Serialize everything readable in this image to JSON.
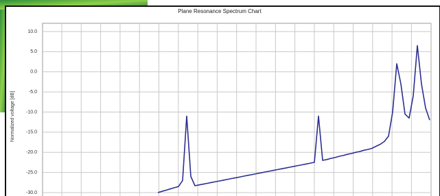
{
  "chart_data": {
    "type": "line",
    "title": "Plane Resonance Spectrum Chart",
    "y_label": "Normalized voltage [dB]",
    "series": [
      {
        "color": "#2b2f8f",
        "values": [
          null,
          null,
          null,
          null,
          null,
          null,
          null,
          null,
          null,
          null,
          null,
          null,
          null,
          null,
          null,
          null,
          null,
          null,
          null,
          null,
          null,
          null,
          null,
          null,
          null,
          null,
          null,
          null,
          -30.0,
          -29.7,
          -29.4,
          -29.1,
          -28.8,
          -28.5,
          -27,
          -11,
          -26,
          -28.3,
          -28.1,
          -27.9,
          -27.7,
          -27.5,
          -27.3,
          -27.1,
          -26.9,
          -26.7,
          -26.5,
          -26.3,
          -26.1,
          -25.9,
          -25.7,
          -25.5,
          -25.3,
          -25.1,
          -24.9,
          -24.7,
          -24.5,
          -24.3,
          -24.1,
          -23.9,
          -23.7,
          -23.5,
          -23.3,
          -23.1,
          -22.9,
          -22.7,
          -22.5,
          -11,
          -22.0,
          -21.8,
          -21.5,
          -21.3,
          -21.0,
          -20.8,
          -20.5,
          -20.3,
          -20.0,
          -19.8,
          -19.5,
          -19.3,
          -19.0,
          -18.5,
          -18.0,
          -17.3,
          -16.0,
          -10,
          2,
          -3,
          -10.5,
          -11.5,
          -6,
          6.5,
          -3,
          -9,
          -12
        ]
      }
    ],
    "ylim": [
      -30,
      10
    ],
    "yticks": [
      {
        "value": 10,
        "label": "10.0"
      },
      {
        "value": 5,
        "label": "5.0"
      },
      {
        "value": 0,
        "label": "0.0"
      },
      {
        "value": -5,
        "label": "-5.0"
      },
      {
        "value": -10,
        "label": "-10.0"
      },
      {
        "value": -15,
        "label": "-15.0"
      },
      {
        "value": -20,
        "label": "-20.0"
      },
      {
        "value": -25,
        "label": "-25.0"
      },
      {
        "value": -30,
        "label": "-30.0"
      }
    ],
    "grid": true
  }
}
